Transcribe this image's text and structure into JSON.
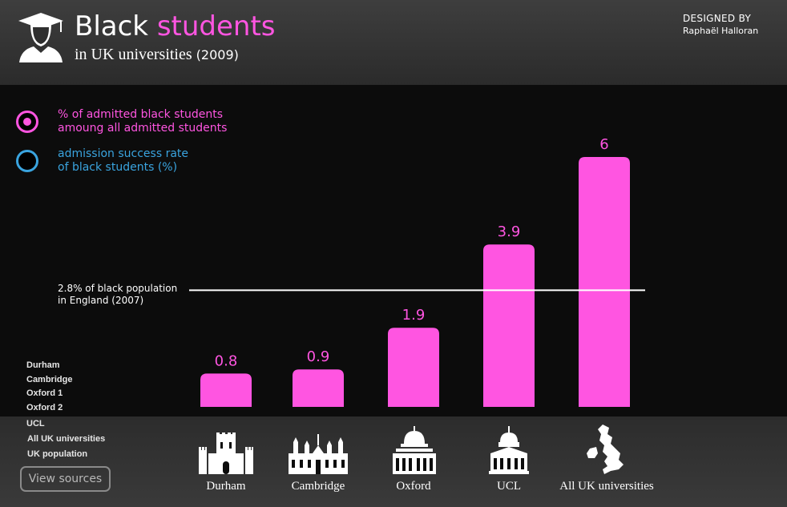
{
  "header": {
    "title_main": "Black",
    "title_accent": "students",
    "subtitle": "in UK universities",
    "year": "(2009)",
    "designed_by_label": "DESIGNED BY",
    "designer": "Raphaël Halloran"
  },
  "legend": [
    {
      "label_line1": "% of admitted black students",
      "label_line2": "amoung all admitted students",
      "color": "#ff55e1"
    },
    {
      "label_line1": "admission success rate",
      "label_line2": "of black students (%)",
      "color": "#3aa4df"
    }
  ],
  "sidebar": {
    "items": [
      "Durham",
      "Cambridge",
      "Oxford 1",
      "Oxford 2",
      "UCL",
      "All UK universities",
      "UK population"
    ],
    "view_sources_label": "View sources"
  },
  "reference_line": {
    "value": 2.8,
    "label_line1": "2.8% of black population",
    "label_line2": "in England (2007)",
    "color": "#ffffff"
  },
  "chart_data": {
    "type": "bar",
    "categories": [
      "Durham",
      "Cambridge",
      "Oxford",
      "UCL",
      "All UK universities"
    ],
    "values": [
      0.8,
      0.9,
      1.9,
      3.9,
      6
    ],
    "value_labels": [
      "0.8",
      "0.9",
      "1.9",
      "3.9",
      "6"
    ],
    "bar_color": "#ff55e1",
    "ylim": [
      0,
      6
    ],
    "reference_value": 2.8,
    "grid": false
  },
  "icons": [
    "durham-castle-icon",
    "cambridge-chapel-icon",
    "oxford-dome-icon",
    "ucl-dome-icon",
    "uk-map-icon"
  ]
}
